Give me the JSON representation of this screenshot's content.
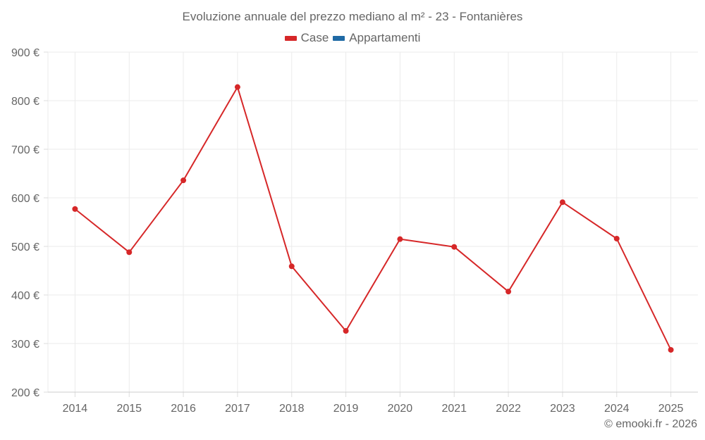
{
  "chart_data": {
    "type": "line",
    "title": "Evoluzione annuale del prezzo mediano al m² - 23 - Fontanières",
    "categories": [
      "2014",
      "2015",
      "2016",
      "2017",
      "2018",
      "2019",
      "2020",
      "2021",
      "2022",
      "2023",
      "2024",
      "2025"
    ],
    "series": [
      {
        "name": "Case",
        "color": "#d62728",
        "values": [
          577,
          488,
          636,
          828,
          459,
          326,
          515,
          499,
          407,
          591,
          516,
          287
        ]
      },
      {
        "name": "Appartamenti",
        "color": "#1f6aa5",
        "values": []
      }
    ],
    "xlabel": "",
    "ylabel": "",
    "ylim": [
      200,
      900
    ],
    "yticks": [
      200,
      300,
      400,
      500,
      600,
      700,
      800,
      900
    ],
    "ytick_labels": [
      "200 €",
      "300 €",
      "400 €",
      "500 €",
      "600 €",
      "700 €",
      "800 €",
      "900 €"
    ],
    "grid": true,
    "legend_position": "top-center"
  },
  "legend": {
    "items": [
      {
        "label": "Case",
        "color": "#d62728"
      },
      {
        "label": "Appartamenti",
        "color": "#1f6aa5"
      }
    ]
  },
  "credit": "© emooki.fr - 2026"
}
